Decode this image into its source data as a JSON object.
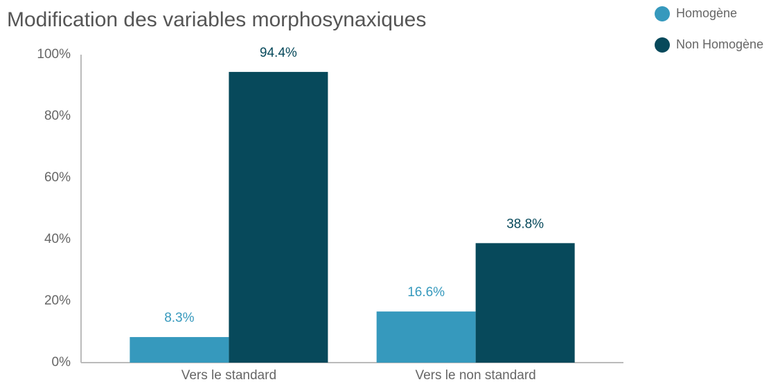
{
  "chart_data": {
    "type": "bar",
    "title": "Modification des variables morphosynaxiques",
    "categories": [
      "Vers le standard",
      "Vers le non standard"
    ],
    "series": [
      {
        "name": "Homogène",
        "color": "#3699bd",
        "values": [
          8.3,
          16.6
        ],
        "value_labels": [
          "8.3%",
          "16.6%"
        ]
      },
      {
        "name": "Non Homogène",
        "color": "#07495b",
        "values": [
          94.4,
          38.8
        ],
        "value_labels": [
          "94.4%",
          "38.8%"
        ]
      }
    ],
    "ylim": [
      0,
      100
    ],
    "yticks": [
      {
        "value": 0,
        "label": "0%"
      },
      {
        "value": 20,
        "label": "20%"
      },
      {
        "value": 40,
        "label": "40%"
      },
      {
        "value": 60,
        "label": "60%"
      },
      {
        "value": 80,
        "label": "80%"
      },
      {
        "value": 100,
        "label": "100%"
      }
    ],
    "grid": false,
    "legend": "top-right"
  }
}
